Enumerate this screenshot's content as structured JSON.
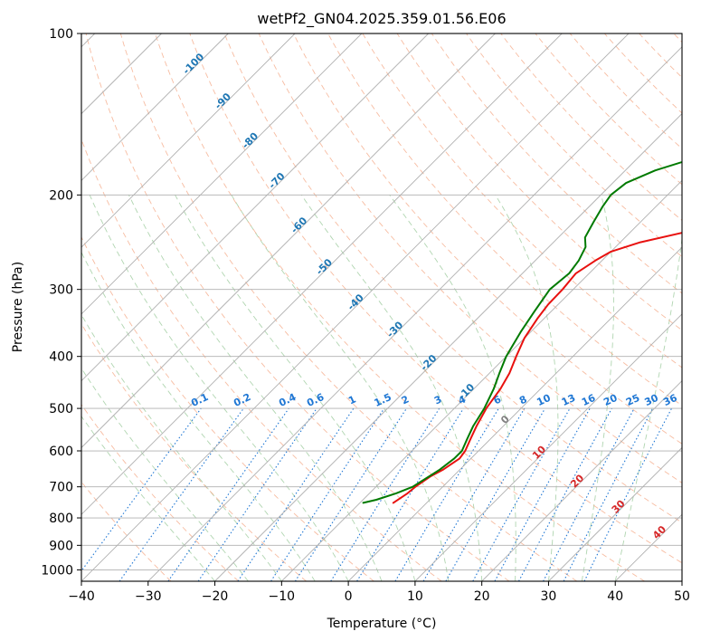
{
  "chart_data": {
    "type": "line",
    "title": "wetPf2_GN04.2025.359.01.56.E06",
    "xlabel": "Temperature (°C)",
    "ylabel": "Pressure (hPa)",
    "xlim": [
      -40,
      50
    ],
    "ylim": [
      1050,
      100
    ],
    "x_ticks": [
      "−40",
      "−30",
      "−20",
      "−10",
      "0",
      "10",
      "20",
      "30",
      "40",
      "50"
    ],
    "y_ticks": [
      "1000",
      "900",
      "800",
      "700",
      "600",
      "500",
      "400",
      "300",
      "200",
      "100"
    ],
    "grid": true,
    "colors": {
      "temperature": "#e8110f",
      "dewpoint": "#007a00",
      "isotherm": "#b0b0b0",
      "dry_adiabat": "#f4a582",
      "moist_adiabat": "#9ccb9c",
      "mixing_ratio": "#1f77d4",
      "label_blue": "#1f77b4",
      "label_red": "#d62728",
      "label_gray": "#808080"
    },
    "series": [
      {
        "name": "Temperature",
        "pressure": [
          750,
          720,
          700,
          670,
          650,
          620,
          600,
          570,
          540,
          500,
          460,
          430,
          400,
          370,
          340,
          320,
          300,
          280,
          265,
          255,
          245,
          235,
          225,
          215,
          205,
          195,
          185,
          175,
          165,
          160,
          150,
          140,
          130,
          120,
          112,
          105,
          100
        ],
        "values": [
          -5,
          -4.3,
          -4.1,
          -3.4,
          -2.5,
          -1.7,
          -2.0,
          -3.0,
          -4.0,
          -5.2,
          -6.0,
          -7.0,
          -8.5,
          -10.0,
          -11.0,
          -11.5,
          -11.6,
          -12.0,
          -11.0,
          -10.0,
          -7.0,
          -2.0,
          2.0,
          6.0,
          10.0,
          13.0,
          15.0,
          16.5,
          18.5,
          20.0,
          22.5,
          24.0,
          26.0,
          27.5,
          29.0,
          31.5,
          33.0
        ]
      },
      {
        "name": "Dewpoint",
        "pressure": [
          750,
          740,
          720,
          700,
          650,
          620,
          600,
          570,
          540,
          500,
          460,
          430,
          400,
          360,
          330,
          300,
          280,
          265,
          250,
          240,
          225,
          210,
          200,
          190,
          180,
          172,
          165,
          160,
          155,
          148,
          143,
          138,
          132,
          126,
          120,
          115,
          110,
          105,
          100
        ],
        "values": [
          -9.5,
          -8.0,
          -6.0,
          -4.5,
          -3.0,
          -2.5,
          -2.5,
          -3.5,
          -4.5,
          -5.5,
          -7.0,
          -8.5,
          -10.0,
          -11.5,
          -12.5,
          -13.5,
          -13.0,
          -13.5,
          -14.5,
          -16.0,
          -17.0,
          -18.0,
          -18.5,
          -18.0,
          -15.5,
          -12.0,
          -11.5,
          -12.0,
          -14.0,
          -16.0,
          -16.0,
          -13.0,
          -9.5,
          -7.5,
          -6.0,
          -5.0,
          -4.0,
          -3.5,
          -2.5
        ]
      }
    ],
    "isotherm_labels": [
      "-100",
      "-90",
      "-80",
      "-70",
      "-60",
      "-50",
      "-40",
      "-30",
      "-20",
      "-10"
    ],
    "mixing_ratio_labels": [
      "0.1",
      "0.2",
      "0.4",
      "0.6",
      "1",
      "1.5",
      "2",
      "3",
      "4",
      "6",
      "8",
      "10",
      "13",
      "16",
      "20",
      "25",
      "30",
      "36"
    ],
    "isotherm_warm_labels": [
      "0",
      "10",
      "20",
      "30",
      "40"
    ]
  }
}
